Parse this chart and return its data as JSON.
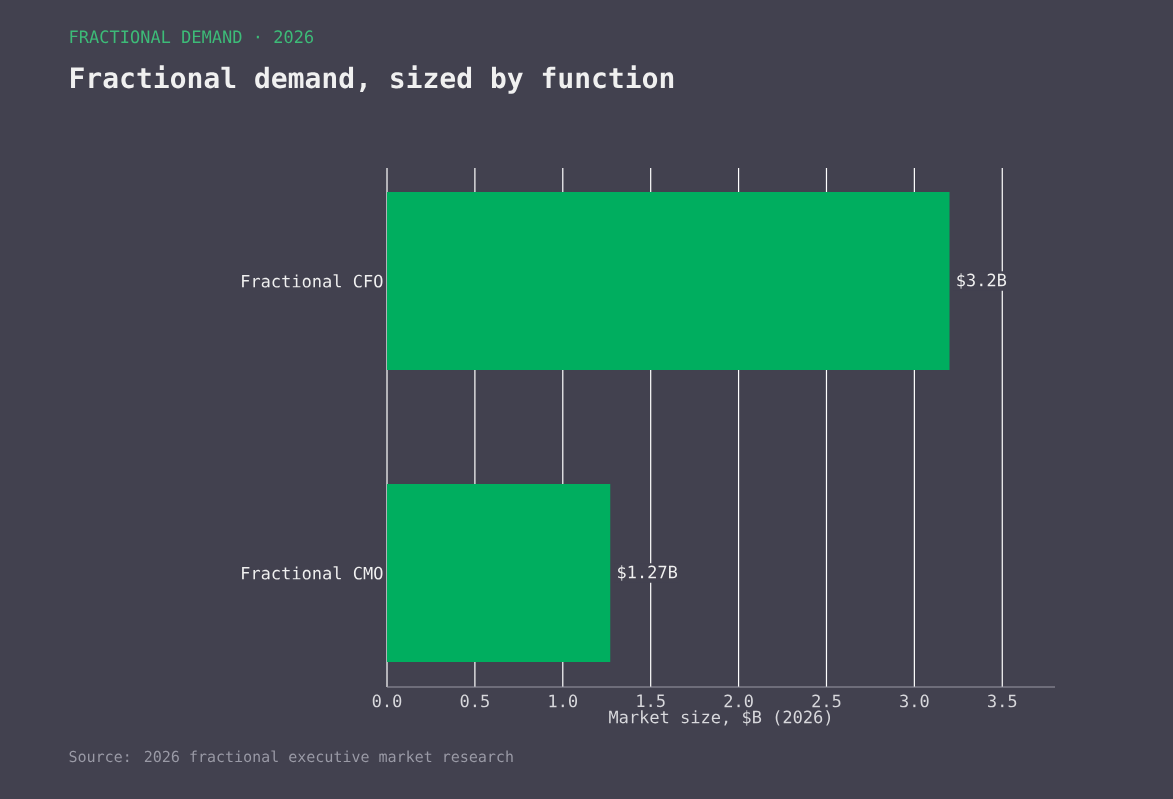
{
  "chart_data": {
    "type": "bar",
    "orientation": "horizontal",
    "subtitle": "FRACTIONAL DEMAND · 2026",
    "title": "Fractional demand, sized by function",
    "xlabel": "Market size, $B (2026)",
    "annotations": [
      "Source: 2026 fractional executive market research"
    ],
    "categories": [
      "Fractional CFO",
      "Fractional CMO"
    ],
    "values": [
      3.2,
      1.27
    ],
    "value_labels": [
      "$3.2B",
      "$1.27B"
    ],
    "color": "#00ae5f",
    "xlim": [
      0,
      3.8
    ],
    "xticks": [
      {
        "value": 0,
        "label": "0.0"
      },
      {
        "value": 0.5,
        "label": "0.5"
      },
      {
        "value": 1,
        "label": "1.0"
      },
      {
        "value": 1.5,
        "label": "1.5"
      },
      {
        "value": 2,
        "label": "2.0"
      },
      {
        "value": 2.5,
        "label": "2.5"
      },
      {
        "value": 3,
        "label": "3.0"
      },
      {
        "value": 3.5,
        "label": "3.5"
      }
    ],
    "grid": "x"
  }
}
